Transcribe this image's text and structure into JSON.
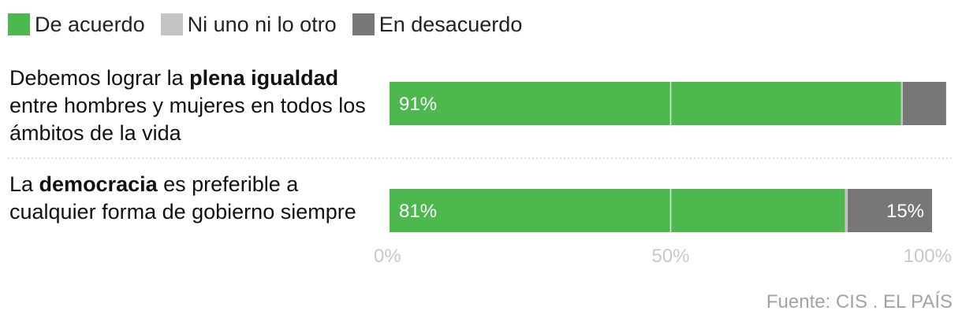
{
  "chart_data": {
    "type": "bar",
    "orientation": "horizontal",
    "stacked": true,
    "percent": true,
    "legend_position": "top-left",
    "grid": true,
    "xlim": [
      0,
      100
    ],
    "ticks": [
      {
        "value": 0,
        "label": "0%"
      },
      {
        "value": 50,
        "label": "50%"
      },
      {
        "value": 100,
        "label": "100%"
      }
    ],
    "series": [
      {
        "name": "De acuerdo",
        "color": "#4cb84e",
        "values": [
          91,
          81
        ]
      },
      {
        "name": "Ni uno ni lo otro",
        "color": "#c4c4c4",
        "values": [
          0.3,
          0.5
        ]
      },
      {
        "name": "En desacuerdo",
        "color": "#777777",
        "values": [
          7.7,
          15
        ]
      }
    ],
    "categories": [
      {
        "pre": "Debemos lograr la ",
        "bold": "plena igualdad",
        "post": " entre hombres y mujeres en todos los ámbitos de la vida"
      },
      {
        "pre": "La ",
        "bold": "democracia",
        "post": " es preferible a cualquier forma de gobierno siempre"
      }
    ],
    "data_labels": [
      [
        {
          "series": 0,
          "text": "91%"
        }
      ],
      [
        {
          "series": 0,
          "text": "81%"
        },
        {
          "series": 2,
          "text": "15%"
        }
      ]
    ]
  },
  "source": "Fuente: CIS . EL PAÍS"
}
